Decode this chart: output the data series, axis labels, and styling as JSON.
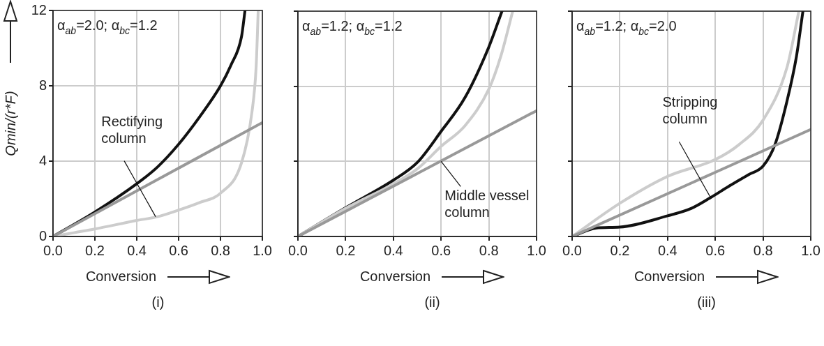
{
  "chart_data": [
    {
      "type": "line",
      "title": "(i)",
      "xlabel": "Conversion",
      "ylabel": "Qmin/(r*F)",
      "xlim": [
        0,
        1
      ],
      "ylim": [
        0,
        12
      ],
      "xticks": [
        {
          "value": 0,
          "label": "0.0"
        },
        {
          "value": 0.2,
          "label": "0.2"
        },
        {
          "value": 0.4,
          "label": "0.4"
        },
        {
          "value": 0.6,
          "label": "0.6"
        },
        {
          "value": 0.8,
          "label": "0.8"
        },
        {
          "value": 1,
          "label": "1.0"
        }
      ],
      "yticks": [
        0,
        4,
        8,
        12
      ],
      "grid": true,
      "legend": false,
      "marker": "none",
      "line_style": "solid",
      "series": [
        {
          "color": "#999999",
          "x": [
            0,
            1
          ],
          "values": [
            0,
            6.05
          ]
        },
        {
          "color": "#cccccc",
          "x": [
            0,
            0.1,
            0.2,
            0.4,
            0.5,
            0.6,
            0.7,
            0.8,
            0.9,
            0.95,
            0.97,
            0.98
          ],
          "values": [
            0,
            0.2,
            0.4,
            0.85,
            1.05,
            1.4,
            1.8,
            2.3,
            3.9,
            6.6,
            9,
            12
          ]
        },
        {
          "color": "#111111",
          "x": [
            0,
            0.2,
            0.4,
            0.5,
            0.6,
            0.7,
            0.8,
            0.85,
            0.9,
            0.917
          ],
          "values": [
            0,
            1.3,
            2.8,
            3.7,
            4.9,
            6.35,
            8,
            9.1,
            10.6,
            12
          ]
        }
      ],
      "annotations": [
        "α$_{ab}$=2.0; α$_{bc}$=1.2",
        {
          "text": "Rectifying column",
          "x": 0.49,
          "y": 1.05
        }
      ]
    },
    {
      "type": "line",
      "title": "(ii)",
      "xlabel": "Conversion",
      "xlim": [
        0,
        1
      ],
      "ylim": [
        0,
        12
      ],
      "xticks": [
        {
          "value": 0,
          "label": "0.0"
        },
        {
          "value": 0.2,
          "label": "0.2"
        },
        {
          "value": 0.4,
          "label": "0.4"
        },
        {
          "value": 0.6,
          "label": "0.6"
        },
        {
          "value": 0.8,
          "label": "0.8"
        },
        {
          "value": 1,
          "label": "1.0"
        }
      ],
      "yticks": [
        0,
        4,
        8,
        12
      ],
      "tick_labels": "x",
      "grid": true,
      "legend": false,
      "marker": "none",
      "line_style": "solid",
      "series": [
        {
          "color": "#999999",
          "x": [
            0,
            1
          ],
          "values": [
            0,
            6.7
          ]
        },
        {
          "color": "#cccccc",
          "x": [
            0,
            0.2,
            0.4,
            0.5,
            0.6,
            0.7,
            0.8,
            0.85,
            0.9
          ],
          "values": [
            0,
            1.5,
            2.8,
            3.6,
            4.8,
            5.9,
            7.85,
            9.6,
            12
          ]
        },
        {
          "color": "#111111",
          "x": [
            0,
            0.2,
            0.4,
            0.5,
            0.6,
            0.7,
            0.8,
            0.855
          ],
          "values": [
            0,
            1.53,
            3,
            3.94,
            5.6,
            7.4,
            10.1,
            12
          ]
        }
      ],
      "annotations": [
        "α$_{ab}$=1.2; α$_{bc}$=1.2",
        {
          "text": "Middle vessel column",
          "x": 0.6,
          "y": 4
        }
      ]
    },
    {
      "type": "line",
      "title": "(iii)",
      "xlabel": "Conversion",
      "xlim": [
        0,
        1
      ],
      "ylim": [
        0,
        12
      ],
      "xticks": [
        {
          "value": 0,
          "label": "0.0"
        },
        {
          "value": 0.2,
          "label": "0.2"
        },
        {
          "value": 0.4,
          "label": "0.4"
        },
        {
          "value": 0.6,
          "label": "0.6"
        },
        {
          "value": 0.8,
          "label": "0.8"
        },
        {
          "value": 1,
          "label": "1.0"
        }
      ],
      "yticks": [
        0,
        4,
        8,
        12
      ],
      "tick_labels": "x",
      "grid": true,
      "legend": false,
      "marker": "none",
      "line_style": "solid",
      "series": [
        {
          "color": "#999999",
          "x": [
            0,
            1
          ],
          "values": [
            0,
            5.7
          ]
        },
        {
          "color": "#cccccc",
          "x": [
            0,
            0.2,
            0.4,
            0.6,
            0.7,
            0.8,
            0.9,
            0.95
          ],
          "values": [
            0,
            1.77,
            3.2,
            4.1,
            4.9,
            6.2,
            9,
            12
          ]
        },
        {
          "color": "#111111",
          "x": [
            0,
            0.1,
            0.2,
            0.4,
            0.5,
            0.58,
            0.66,
            0.74,
            0.8,
            0.85,
            0.9,
            0.94,
            0.967
          ],
          "values": [
            0,
            0.45,
            0.5,
            1.1,
            1.5,
            2.07,
            2.7,
            3.3,
            3.75,
            4.9,
            7.2,
            9.6,
            12
          ]
        }
      ],
      "annotations": [
        "α$_{ab}$=1.2; α$_{bc}$=2.0",
        {
          "text": "Stripping column",
          "x": 0.58,
          "y": 2.07
        }
      ]
    }
  ]
}
